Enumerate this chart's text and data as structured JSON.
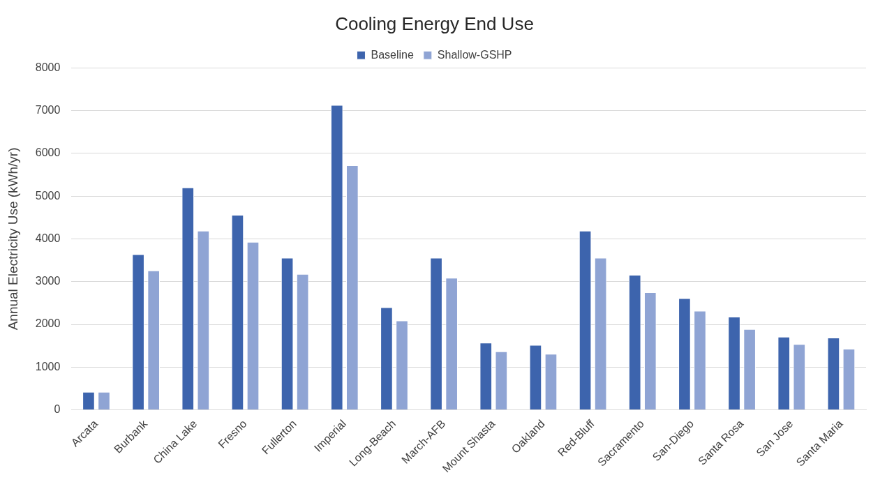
{
  "chart_data": {
    "type": "bar",
    "title": "Cooling Energy End Use",
    "ylabel": "Annual Electricity Use (kWh/yr)",
    "categories": [
      "Arcata",
      "Burbank",
      "China Lake",
      "Fresno",
      "Fullerton",
      "Imperial",
      "Long-Beach",
      "March-AFB",
      "Mount Shasta",
      "Oakland",
      "Red-Bluff",
      "Sacramento",
      "San-Diego",
      "Santa Rosa",
      "San Jose",
      "Santa Maria"
    ],
    "series": [
      {
        "name": "Baseline",
        "color": "#3d64ad",
        "values": [
          420,
          3640,
          5200,
          4560,
          3560,
          7130,
          2400,
          3560,
          1570,
          1520,
          4190,
          3160,
          2610,
          2180,
          1710,
          1690
        ]
      },
      {
        "name": "Shallow-GSHP",
        "color": "#8fa4d4",
        "values": [
          420,
          3260,
          4190,
          3930,
          3180,
          5720,
          2090,
          3090,
          1370,
          1310,
          3560,
          2750,
          2320,
          1890,
          1540,
          1430
        ]
      }
    ],
    "ylim": [
      0,
      8000
    ],
    "yticks": [
      0,
      1000,
      2000,
      3000,
      4000,
      5000,
      6000,
      7000,
      8000
    ],
    "grid": "y",
    "legend": "top"
  }
}
